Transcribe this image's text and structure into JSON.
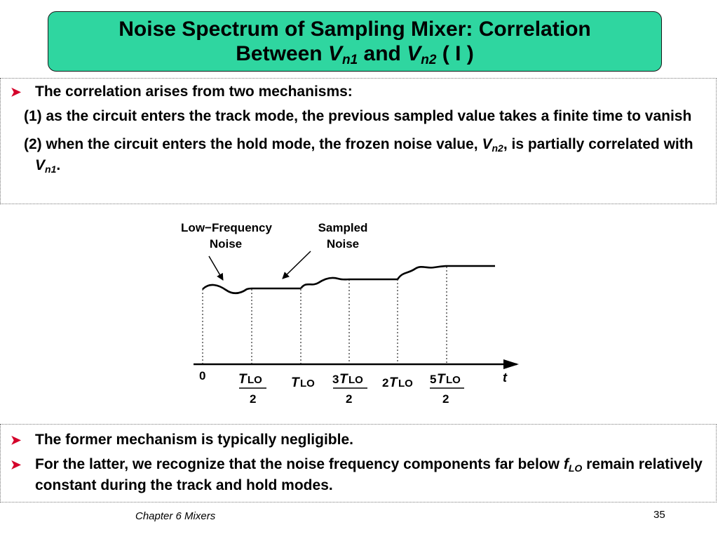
{
  "title": {
    "line1": "Noise Spectrum of Sampling Mixer: Correlation",
    "between": "Between ",
    "v": "V",
    "n1": "n1",
    "and": " and ",
    "n2": "n2",
    "suffix": " ( I )"
  },
  "panel1": {
    "bullet": "The correlation arises from two mechanisms:",
    "item1": "(1) as the circuit enters the track mode, the previous sampled value takes a finite time to vanish",
    "item2_a": "(2) when the circuit enters the hold mode, the frozen noise value, ",
    "item2_v": "V",
    "item2_sub": "n2",
    "item2_b": ", is partially correlated with ",
    "item2_v2": "V",
    "item2_sub2": "n1",
    "item2_end": "."
  },
  "diagram": {
    "label_lf_1": "Low−Frequency",
    "label_lf_2": "Noise",
    "label_s_1": "Sampled",
    "label_s_2": "Noise",
    "tick0": "0",
    "T": "T",
    "LO": "LO",
    "two": "2",
    "three": "3",
    "five": "5",
    "axis_t": "t"
  },
  "panel2": {
    "bullet1": "The former mechanism is typically negligible.",
    "bullet2_a": "For the latter, we recognize that the noise frequency components far below ",
    "bullet2_f": "f",
    "bullet2_sub": "LO",
    "bullet2_b": " remain relatively constant during the track and hold modes."
  },
  "footer": {
    "chapter": "Chapter 6 Mixers",
    "page": "35"
  },
  "colors": {
    "title_bg": "#2fd6a0",
    "bullet_arrow": "#d4002a"
  }
}
